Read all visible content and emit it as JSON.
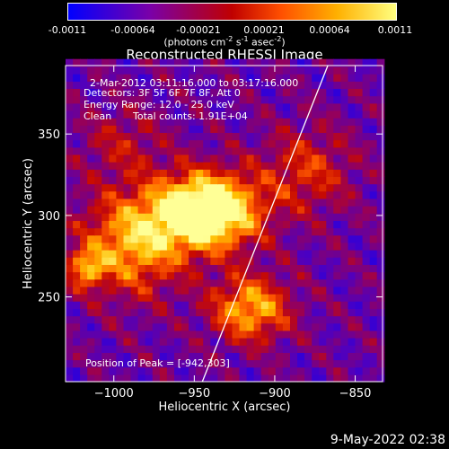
{
  "colorbar": {
    "ticks": [
      "-0.0011",
      "-0.00064",
      "-0.00021",
      "0.00021",
      "0.00064",
      "0.0011"
    ],
    "units_text": "(photons cm",
    "units_sup1": "-2",
    "units_mid": " s",
    "units_sup2": "-1",
    "units_mid2": " asec",
    "units_sup3": "-2",
    "units_end": ")"
  },
  "title": "Reconstructed RHESSI Image",
  "annotations": {
    "time": "2-Mar-2012 03:11:16.000 to 03:17:16.000",
    "detectors": "Detectors: 3F 5F 6F 7F 8F, Att 0",
    "energy": "Energy Range: 12.0 - 25.0 keV",
    "algorithm": "Clean",
    "counts": "Total counts: 1.91E+04",
    "peak": "Position of Peak = [-942,303]"
  },
  "timestamp": "9-May-2022 02:38",
  "chart_data": {
    "type": "heatmap",
    "title": "Reconstructed RHESSI Image",
    "xlabel": "Heliocentric X (arcsec)",
    "ylabel": "Heliocentric Y (arcsec)",
    "xlim": [
      -1030,
      -833
    ],
    "ylim": [
      198,
      392
    ],
    "x_ticks": [
      -1000,
      -950,
      -900,
      -850
    ],
    "y_ticks": [
      250,
      300,
      350
    ],
    "x_tick_labels": [
      "−1000",
      "−950",
      "−900",
      "−850"
    ],
    "y_tick_labels": [
      "250",
      "300",
      "350"
    ],
    "colorbar_range": [
      -0.0011,
      0.0011
    ],
    "colormap": "red-temperature",
    "peak": [
      -942,
      303
    ],
    "sources": [
      {
        "x": -942,
        "y": 303,
        "amp": 1.0,
        "sx": 22,
        "sy": 16
      },
      {
        "x": -988,
        "y": 284,
        "amp": 0.55,
        "sx": 22,
        "sy": 22
      },
      {
        "x": -915,
        "y": 243,
        "amp": 0.55,
        "sx": 17,
        "sy": 14
      },
      {
        "x": -1017,
        "y": 268,
        "amp": 0.45,
        "sx": 8,
        "sy": 8
      },
      {
        "x": -880,
        "y": 328,
        "amp": 0.3,
        "sx": 20,
        "sy": 18
      },
      {
        "x": -995,
        "y": 345,
        "amp": 0.2,
        "sx": 18,
        "sy": 15
      }
    ],
    "limb_line": [
      [
        -945,
        198
      ],
      [
        -867,
        392
      ]
    ]
  }
}
